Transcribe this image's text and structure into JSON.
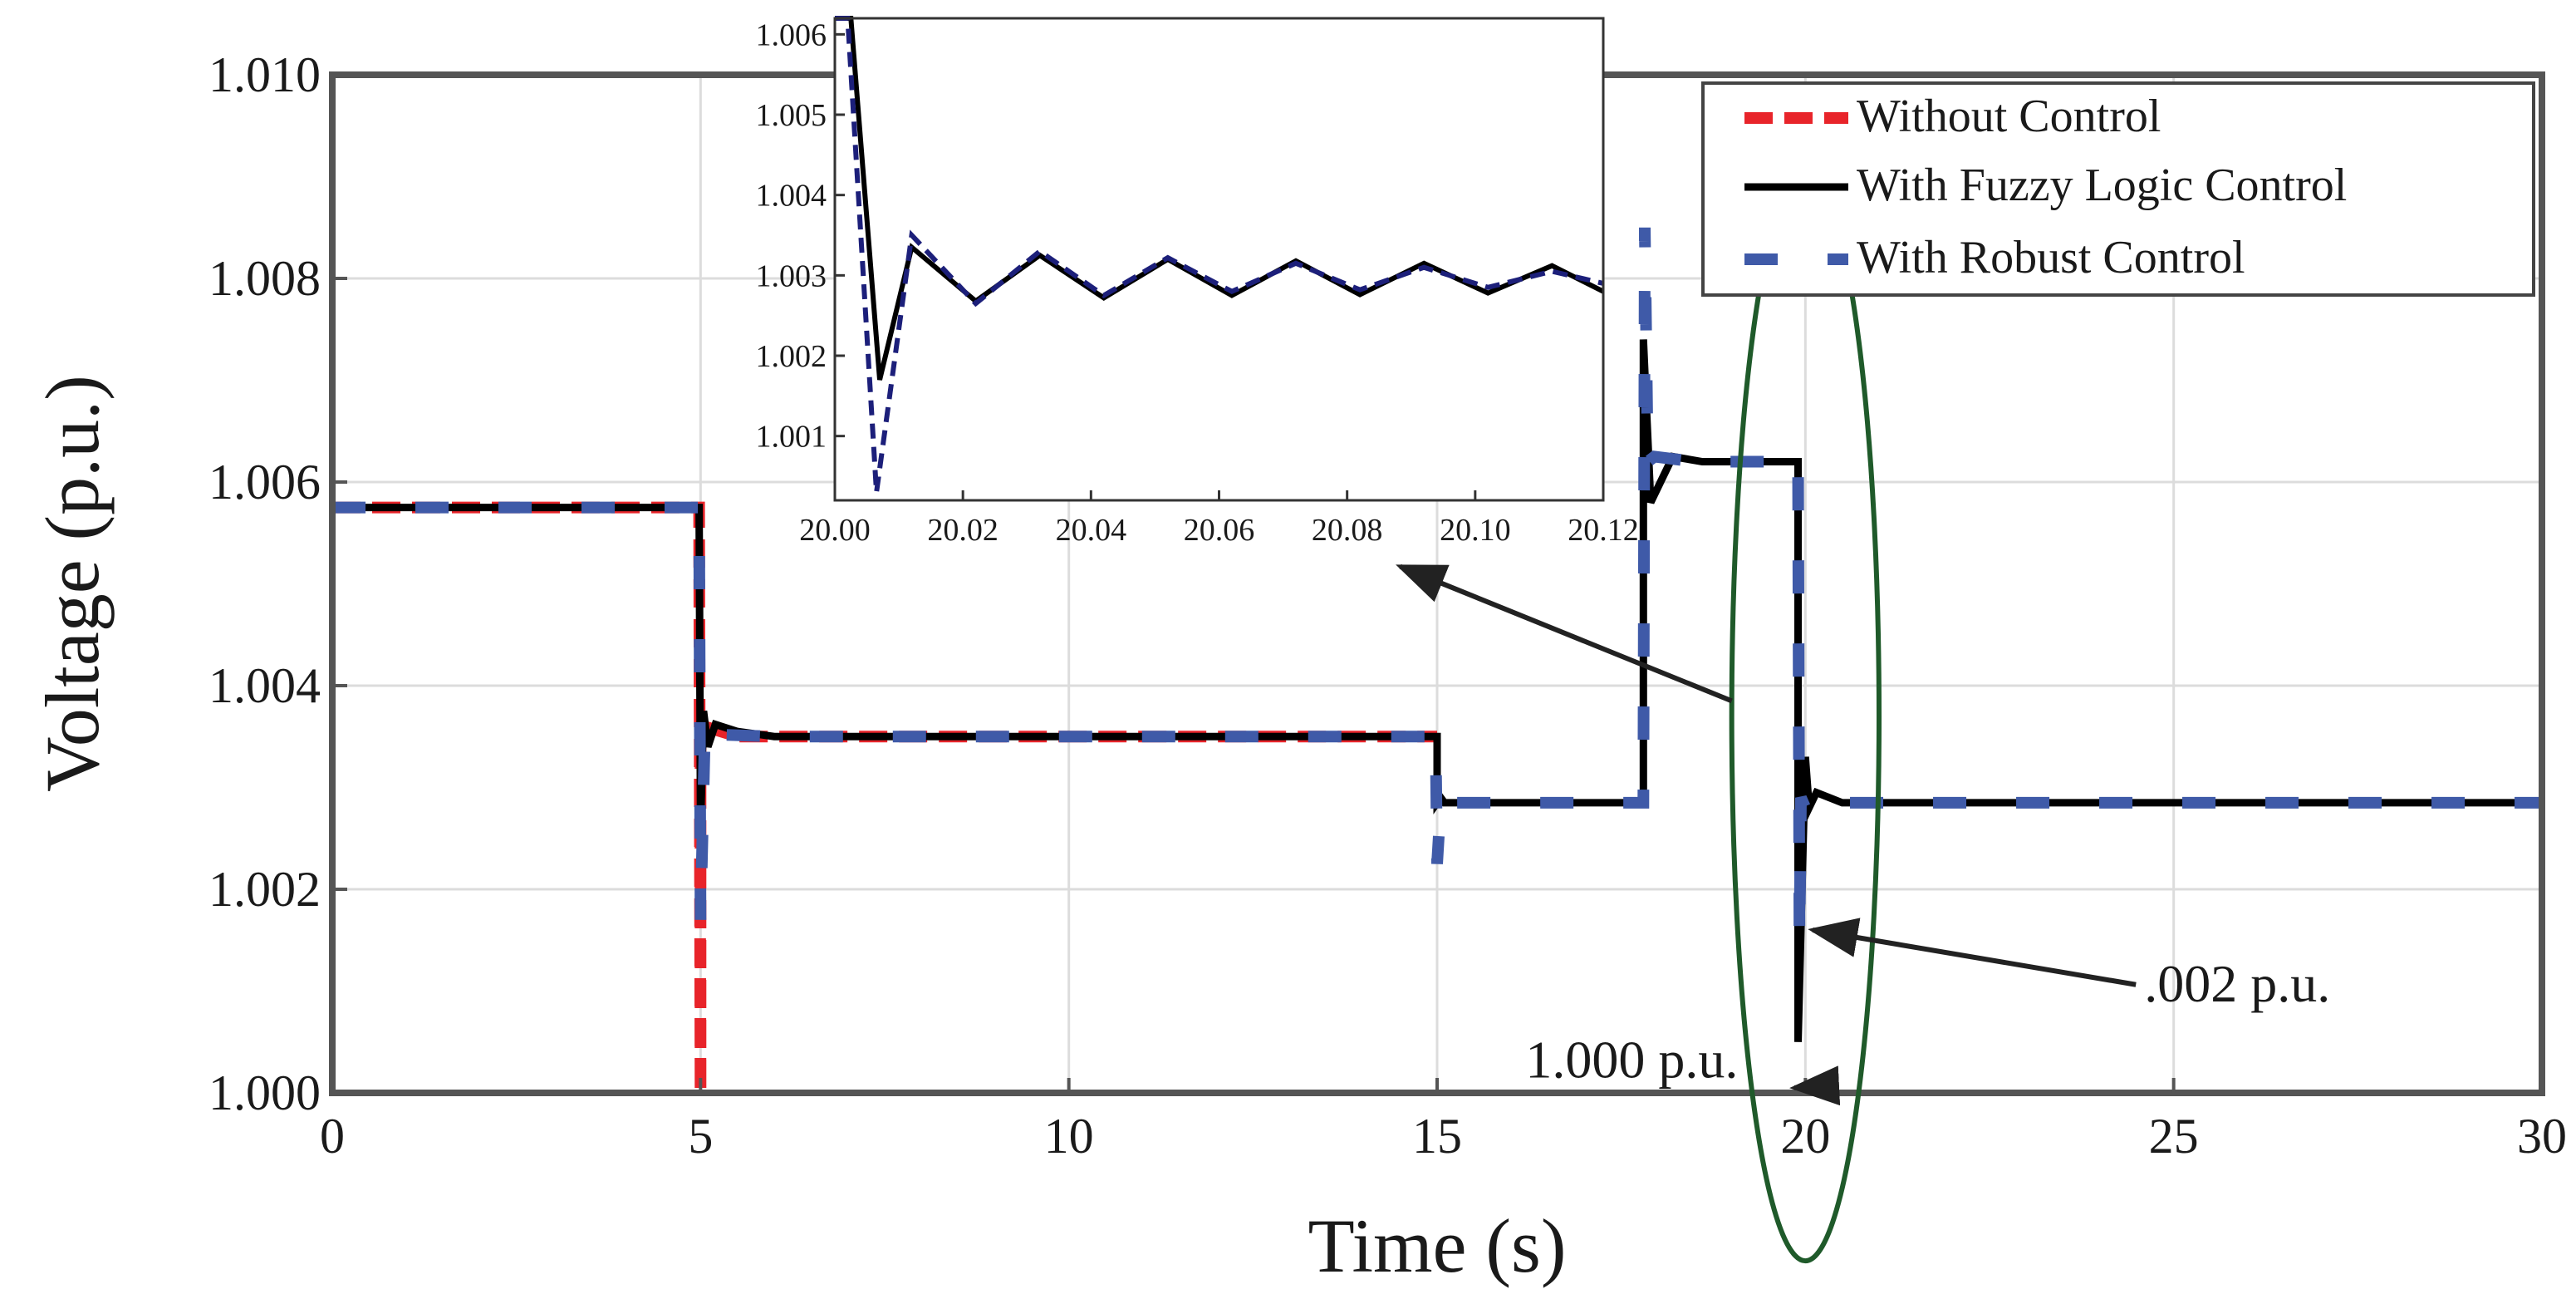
{
  "colors": {
    "without": "#e8242a",
    "fuzzy": "#000000",
    "robust": "#3f5aa8",
    "robust_inset": "#1c1f7a",
    "ellipse": "#1f5a2a",
    "grid": "#dcdcdc",
    "arrow": "#222222"
  },
  "chart_data": [
    {
      "type": "line",
      "name": "main",
      "xlabel": "Time (s)",
      "ylabel": "Voltage (p.u.)",
      "xlim": [
        0,
        30
      ],
      "ylim": [
        1.0,
        1.01
      ],
      "xticks": [
        0,
        5,
        10,
        15,
        20,
        25,
        30
      ],
      "xtick_labels": [
        "0",
        "5",
        "10",
        "15",
        "20",
        "25",
        "30"
      ],
      "yticks": [
        1.0,
        1.002,
        1.004,
        1.006,
        1.008,
        1.01
      ],
      "ytick_labels": [
        "1.000",
        "1.002",
        "1.004",
        "1.006",
        "1.008",
        "1.010"
      ],
      "grid": true,
      "legend": {
        "position": "top-right",
        "entries": [
          {
            "label": "Without Control",
            "series": "without"
          },
          {
            "label": "With Fuzzy Logic Control",
            "series": "fuzzy"
          },
          {
            "label": "With Robust Control",
            "series": "robust"
          }
        ]
      },
      "series": [
        {
          "key": "without",
          "name": "Without Control",
          "x": [
            0,
            4.98,
            5.0,
            5.0,
            5.05,
            5.5,
            15
          ],
          "y": [
            1.00575,
            1.00575,
            1.0,
            1.0035,
            1.0036,
            1.0035,
            1.0035
          ]
        },
        {
          "key": "fuzzy",
          "name": "With Fuzzy Logic Control",
          "x": [
            0,
            4.98,
            5.0,
            5.04,
            5.1,
            5.2,
            5.5,
            6.0,
            15.0,
            15.0,
            15.05,
            15.1,
            17.8,
            17.8,
            17.9,
            18.2,
            18.6,
            19.9,
            19.9,
            20.0,
            20.05,
            20.15,
            20.5,
            21.0,
            30.0
          ],
          "y": [
            1.00575,
            1.00575,
            1.0026,
            1.00375,
            1.0034,
            1.00362,
            1.00355,
            1.0035,
            1.0035,
            1.00285,
            1.0029,
            1.00285,
            1.00285,
            1.0074,
            1.0058,
            1.00625,
            1.0062,
            1.0062,
            1.0005,
            1.0033,
            1.0028,
            1.00295,
            1.00285,
            1.00285,
            1.00285
          ]
        },
        {
          "key": "robust",
          "name": "With Robust Control",
          "x": [
            0,
            4.98,
            5.0,
            5.06,
            5.2,
            6.0,
            14.98,
            15.0,
            15.05,
            15.1,
            17.8,
            17.82,
            17.86,
            17.95,
            18.5,
            19.9,
            19.92,
            19.94,
            20.0,
            20.1,
            20.5,
            30.0
          ],
          "y": [
            1.00575,
            1.00575,
            1.0017,
            1.0036,
            1.00352,
            1.0035,
            1.0035,
            1.00225,
            1.00285,
            1.00285,
            1.00285,
            1.0085,
            1.0062,
            1.00625,
            1.0062,
            1.0062,
            1.0015,
            1.0029,
            1.0028,
            1.00288,
            1.00285,
            1.00285
          ]
        }
      ],
      "annotations": [
        {
          "text": "1.000 p.u.",
          "x": 16.2,
          "y": 1.00015,
          "arrow_to": [
            19.85,
            1.00005
          ]
        },
        {
          "text": ".002 p.u.",
          "x": 24.6,
          "y": 1.0009,
          "arrow_to": [
            20.1,
            1.0016
          ]
        }
      ],
      "highlight_ellipse": {
        "cx": 20.0,
        "cy": 1.0037,
        "rx": 1.0,
        "ry": 0.00535
      },
      "zoom_arrow": {
        "from": [
          19.0,
          1.00385
        ],
        "to": [
          14.5,
          1.00517
        ]
      }
    },
    {
      "type": "line",
      "name": "inset",
      "xlim": [
        20.0,
        20.12
      ],
      "ylim": [
        1.0002,
        1.0062
      ],
      "xticks": [
        20.0,
        20.02,
        20.04,
        20.06,
        20.08,
        20.1,
        20.12
      ],
      "xtick_labels": [
        "20.00",
        "20.02",
        "20.04",
        "20.06",
        "20.08",
        "20.10",
        "20.12"
      ],
      "yticks": [
        1.001,
        1.002,
        1.003,
        1.004,
        1.005,
        1.006
      ],
      "ytick_labels": [
        "1.001",
        "1.002",
        "1.003",
        "1.004",
        "1.005",
        "1.006"
      ],
      "series": [
        {
          "key": "fuzzy",
          "name": "With Fuzzy Logic Control",
          "x": [
            20.0,
            20.0025,
            20.007,
            20.012,
            20.022,
            20.032,
            20.042,
            20.052,
            20.062,
            20.072,
            20.082,
            20.092,
            20.102,
            20.112,
            20.12
          ],
          "y": [
            1.0062,
            1.0062,
            1.0017,
            1.00335,
            1.00268,
            1.00325,
            1.00272,
            1.0032,
            1.00275,
            1.00318,
            1.00276,
            1.00315,
            1.00278,
            1.00312,
            1.0028
          ]
        },
        {
          "key": "robust",
          "name": "With Robust Control",
          "x": [
            20.0,
            20.002,
            20.0065,
            20.012,
            20.022,
            20.032,
            20.042,
            20.052,
            20.062,
            20.072,
            20.082,
            20.092,
            20.102,
            20.112,
            20.12
          ],
          "y": [
            1.0062,
            1.0062,
            1.0003,
            1.0035,
            1.00265,
            1.0033,
            1.00275,
            1.00322,
            1.0028,
            1.00315,
            1.00282,
            1.0031,
            1.00285,
            1.00305,
            1.0029
          ]
        }
      ]
    }
  ]
}
